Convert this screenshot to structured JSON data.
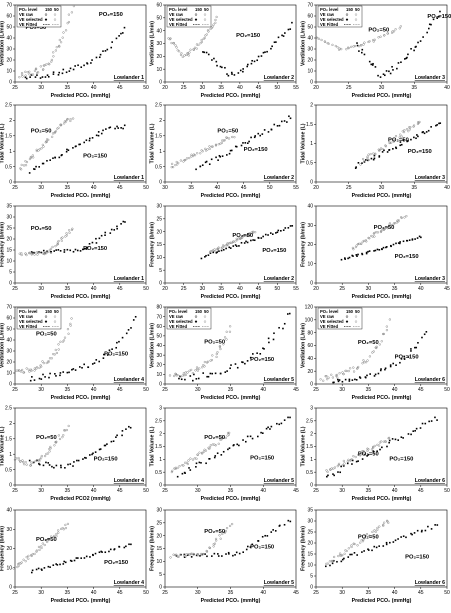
{
  "x_label": "Predicted PCO₂ (mmHg)",
  "x_label_alt": "Predicted PCO2 (mmHg)",
  "y_labels": {
    "ventilation": "Ventilation (L/min)",
    "tidal": "Tidal Volume (L)",
    "frequency": "Frequency (b/min)"
  },
  "annotations": {
    "po2_50": "PO₂=50",
    "po2_150": "PO₂=150"
  },
  "legend": {
    "header": [
      "PO₂ level",
      "150",
      "50"
    ],
    "rows": [
      "VE raw",
      "VE selected",
      "VE Fitted"
    ]
  },
  "colors": {
    "po2_50": "#8a8a8a",
    "po2_150": "#000000",
    "axis": "#000000"
  },
  "chart_data": [
    {
      "row": 0,
      "col": 0,
      "type": "scatter",
      "subject": "Lowlander 1",
      "xlim": [
        25,
        50
      ],
      "ylim": [
        0,
        70
      ],
      "xticks": [
        25,
        30,
        35,
        40,
        45,
        50
      ],
      "yticks": [
        0,
        10,
        20,
        30,
        40,
        50,
        60,
        70
      ],
      "ytype": "ventilation",
      "x50": [
        26,
        36
      ],
      "x150": [
        27,
        46
      ],
      "y50": [
        5,
        68
      ],
      "y150": [
        4,
        50
      ],
      "shape": "expo",
      "legend": true,
      "a50": [
        27,
        48
      ],
      "a150": [
        41,
        60
      ]
    },
    {
      "row": 0,
      "col": 1,
      "type": "scatter",
      "subject": "Lowlander 2",
      "xlim": [
        20,
        55
      ],
      "ylim": [
        0,
        60
      ],
      "xticks": [
        20,
        25,
        30,
        35,
        40,
        45,
        50,
        55
      ],
      "yticks": [
        0,
        10,
        20,
        30,
        40,
        50,
        60
      ],
      "ytype": "ventilation",
      "x50": [
        21,
        34
      ],
      "x150": [
        30,
        54
      ],
      "y50": [
        20,
        50
      ],
      "y150": [
        5,
        45
      ],
      "shape": "uturn",
      "legend": true,
      "a50": [
        23,
        46
      ],
      "a150": [
        39,
        35
      ]
    },
    {
      "row": 0,
      "col": 2,
      "type": "scatter",
      "subject": "Lowlander 3",
      "xlim": [
        20,
        40
      ],
      "ylim": [
        0,
        70
      ],
      "xticks": [
        20,
        25,
        30,
        35,
        40
      ],
      "yticks": [
        0,
        10,
        20,
        30,
        40,
        50,
        60,
        70
      ],
      "ytype": "ventilation",
      "x50": [
        20,
        33
      ],
      "x150": [
        26,
        39
      ],
      "y50": [
        30,
        50
      ],
      "y150": [
        5,
        65
      ],
      "shape": "uturn",
      "legend": true,
      "a50": [
        28,
        46
      ],
      "a150": [
        37,
        58
      ]
    },
    {
      "row": 1,
      "col": 0,
      "type": "scatter",
      "subject": "Lowlander 1",
      "xlim": [
        25,
        50
      ],
      "ylim": [
        0,
        2.5
      ],
      "xticks": [
        25,
        30,
        35,
        40,
        45,
        50
      ],
      "yticks": [
        0,
        0.5,
        1,
        1.5,
        2,
        2.5
      ],
      "ytype": "tidal",
      "x50": [
        26,
        36
      ],
      "x150": [
        28,
        46
      ],
      "y50": [
        0.4,
        2.0
      ],
      "y150": [
        0.35,
        1.8
      ],
      "shape": "sat",
      "legend": false,
      "a50": [
        28,
        1.6
      ],
      "a150": [
        38,
        0.8
      ]
    },
    {
      "row": 1,
      "col": 1,
      "type": "scatter",
      "subject": "Lowlander 2",
      "xlim": [
        30,
        55
      ],
      "ylim": [
        0,
        2.5
      ],
      "xticks": [
        30,
        35,
        40,
        45,
        50,
        55
      ],
      "yticks": [
        0,
        0.5,
        1,
        1.5,
        2,
        2.5
      ],
      "ytype": "tidal",
      "x50": [
        31,
        43
      ],
      "x150": [
        36,
        54
      ],
      "y50": [
        0.5,
        1.5
      ],
      "y150": [
        0.4,
        2.1
      ],
      "shape": "linear",
      "legend": false,
      "a50": [
        40,
        1.6
      ],
      "a150": [
        45,
        1.0
      ]
    },
    {
      "row": 1,
      "col": 2,
      "type": "scatter",
      "subject": "Lowlander 3",
      "xlim": [
        20,
        40
      ],
      "ylim": [
        0,
        2
      ],
      "xticks": [
        20,
        25,
        30,
        35,
        40
      ],
      "yticks": [
        0,
        0.5,
        1,
        1.5,
        2
      ],
      "ytype": "tidal",
      "x50": [
        27,
        36
      ],
      "x150": [
        26,
        39
      ],
      "y50": [
        0.5,
        1.6
      ],
      "y150": [
        0.4,
        1.5
      ],
      "shape": "linear",
      "legend": false,
      "a50": [
        31,
        1.05
      ],
      "a150": [
        34,
        0.75
      ]
    },
    {
      "row": 2,
      "col": 0,
      "type": "scatter",
      "subject": "Lowlander 1",
      "xlim": [
        25,
        50
      ],
      "ylim": [
        0,
        35
      ],
      "xticks": [
        25,
        30,
        35,
        40,
        45,
        50
      ],
      "yticks": [
        0,
        5,
        10,
        15,
        20,
        25,
        30,
        35
      ],
      "ytype": "frequency",
      "x50": [
        26,
        36
      ],
      "x150": [
        28,
        46
      ],
      "y50": [
        13,
        25
      ],
      "y150": [
        14,
        28
      ],
      "shape": "flatup",
      "legend": false,
      "a50": [
        28,
        24
      ],
      "a150": [
        38,
        15
      ]
    },
    {
      "row": 2,
      "col": 1,
      "type": "scatter",
      "subject": "Lowlander 2",
      "xlim": [
        20,
        55
      ],
      "ylim": [
        0,
        30
      ],
      "xticks": [
        20,
        25,
        30,
        35,
        40,
        45,
        50,
        55
      ],
      "yticks": [
        0,
        5,
        10,
        15,
        20,
        25,
        30
      ],
      "ytype": "frequency",
      "x50": [
        32,
        44
      ],
      "x150": [
        30,
        54
      ],
      "y50": [
        12,
        20
      ],
      "y150": [
        10,
        22
      ],
      "shape": "linear",
      "legend": false,
      "a50": [
        38,
        18
      ],
      "a150": [
        46,
        12
      ]
    },
    {
      "row": 2,
      "col": 2,
      "type": "scatter",
      "subject": "Lowlander 3",
      "xlim": [
        20,
        45
      ],
      "ylim": [
        0,
        40
      ],
      "xticks": [
        20,
        25,
        30,
        35,
        40,
        45
      ],
      "yticks": [
        0,
        10,
        20,
        30,
        40
      ],
      "ytype": "frequency",
      "x50": [
        27,
        37
      ],
      "x150": [
        25,
        40
      ],
      "y50": [
        18,
        35
      ],
      "y150": [
        12,
        24
      ],
      "shape": "linear",
      "legend": false,
      "a50": [
        31,
        28
      ],
      "a150": [
        35,
        13
      ]
    },
    {
      "row": 3,
      "col": 0,
      "type": "scatter",
      "subject": "Lowlander 4",
      "xlim": [
        25,
        50
      ],
      "ylim": [
        0,
        70
      ],
      "xticks": [
        25,
        30,
        35,
        40,
        45,
        50
      ],
      "yticks": [
        0,
        10,
        20,
        30,
        40,
        50,
        60,
        70
      ],
      "ytype": "ventilation",
      "x50": [
        25,
        36
      ],
      "x150": [
        28,
        48
      ],
      "y50": [
        10,
        60
      ],
      "y150": [
        5,
        60
      ],
      "shape": "expo",
      "legend": true,
      "a50": [
        29,
        44
      ],
      "a150": [
        42,
        26
      ]
    },
    {
      "row": 3,
      "col": 1,
      "type": "scatter",
      "subject": "Lowlander 5",
      "xlim": [
        25,
        45
      ],
      "ylim": [
        0,
        80
      ],
      "xticks": [
        25,
        30,
        35,
        40,
        45
      ],
      "yticks": [
        0,
        10,
        20,
        30,
        40,
        50,
        60,
        70,
        80
      ],
      "ytype": "ventilation",
      "x50": [
        26,
        35
      ],
      "x150": [
        27,
        44
      ],
      "y50": [
        8,
        60
      ],
      "y150": [
        5,
        75
      ],
      "shape": "expo",
      "legend": true,
      "a50": [
        31,
        42
      ],
      "a150": [
        38,
        24
      ]
    },
    {
      "row": 3,
      "col": 2,
      "type": "scatter",
      "subject": "Lowlander 6",
      "xlim": [
        25,
        50
      ],
      "ylim": [
        0,
        120
      ],
      "xticks": [
        25,
        30,
        35,
        40,
        45,
        50
      ],
      "yticks": [
        0,
        20,
        40,
        60,
        80,
        100,
        120
      ],
      "ytype": "ventilation",
      "x50": [
        26,
        39
      ],
      "x150": [
        28,
        46
      ],
      "y50": [
        8,
        100
      ],
      "y150": [
        5,
        80
      ],
      "shape": "expo",
      "legend": true,
      "a50": [
        33,
        62
      ],
      "a150": [
        40,
        40
      ]
    },
    {
      "row": 4,
      "col": 0,
      "type": "scatter",
      "subject": "Lowlander 4",
      "xlim": [
        25,
        50
      ],
      "ylim": [
        0,
        2.5
      ],
      "xticks": [
        25,
        30,
        35,
        40,
        45,
        50
      ],
      "yticks": [
        0,
        0.5,
        1,
        1.5,
        2,
        2.5
      ],
      "ytype": "tidal",
      "x50": [
        25,
        35
      ],
      "x150": [
        28,
        47
      ],
      "y50": [
        0.6,
        1.9
      ],
      "y150": [
        0.5,
        1.9
      ],
      "shape": "ushape",
      "legend": false,
      "a50": [
        29,
        1.5
      ],
      "a150": [
        40,
        0.8
      ],
      "xlabel_key": "x_label_alt"
    },
    {
      "row": 4,
      "col": 1,
      "type": "scatter",
      "subject": "Lowlander 5",
      "xlim": [
        25,
        45
      ],
      "ylim": [
        0,
        3
      ],
      "xticks": [
        25,
        30,
        35,
        40,
        45
      ],
      "yticks": [
        0,
        0.5,
        1,
        1.5,
        2,
        2.5,
        3
      ],
      "ytype": "tidal",
      "x50": [
        26,
        35
      ],
      "x150": [
        27,
        44
      ],
      "y50": [
        0.5,
        2.0
      ],
      "y150": [
        0.4,
        2.6
      ],
      "shape": "linear",
      "legend": false,
      "a50": [
        31,
        1.8
      ],
      "a150": [
        38,
        1.0
      ]
    },
    {
      "row": 4,
      "col": 2,
      "type": "scatter",
      "subject": "Lowlander 6",
      "xlim": [
        25,
        50
      ],
      "ylim": [
        0,
        3
      ],
      "xticks": [
        25,
        30,
        35,
        40,
        45,
        50
      ],
      "yticks": [
        0,
        0.5,
        1,
        1.5,
        2,
        2.5,
        3
      ],
      "ytype": "tidal",
      "x50": [
        27,
        39
      ],
      "x150": [
        27,
        48
      ],
      "y50": [
        0.5,
        1.8
      ],
      "y150": [
        0.3,
        2.6
      ],
      "shape": "linear",
      "legend": false,
      "a50": [
        33,
        1.15
      ],
      "a150": [
        39,
        0.95
      ]
    },
    {
      "row": 5,
      "col": 0,
      "type": "scatter",
      "subject": "Lowlander 4",
      "xlim": [
        25,
        50
      ],
      "ylim": [
        0,
        40
      ],
      "xticks": [
        25,
        30,
        35,
        40,
        45,
        50
      ],
      "yticks": [
        0,
        10,
        20,
        30,
        40
      ],
      "ytype": "frequency",
      "x50": [
        25,
        35
      ],
      "x150": [
        28,
        47
      ],
      "y50": [
        10,
        32
      ],
      "y150": [
        8,
        22
      ],
      "shape": "linear",
      "legend": false,
      "a50": [
        29,
        24
      ],
      "a150": [
        42,
        12
      ]
    },
    {
      "row": 5,
      "col": 1,
      "type": "scatter",
      "subject": "Lowlander 5",
      "xlim": [
        25,
        45
      ],
      "ylim": [
        0,
        30
      ],
      "xticks": [
        25,
        30,
        35,
        40,
        45
      ],
      "yticks": [
        0,
        5,
        10,
        15,
        20,
        25,
        30
      ],
      "ytype": "frequency",
      "x50": [
        26,
        35
      ],
      "x150": [
        27,
        44
      ],
      "y50": [
        12,
        24
      ],
      "y150": [
        12,
        26
      ],
      "shape": "flatup",
      "legend": false,
      "a50": [
        31,
        21
      ],
      "a150": [
        38,
        15
      ]
    },
    {
      "row": 5,
      "col": 2,
      "type": "scatter",
      "subject": "Lowlander 6",
      "xlim": [
        25,
        50
      ],
      "ylim": [
        0,
        35
      ],
      "xticks": [
        25,
        30,
        35,
        40,
        45,
        50
      ],
      "yticks": [
        0,
        5,
        10,
        15,
        20,
        25,
        30,
        35
      ],
      "ytype": "frequency",
      "x50": [
        27,
        39
      ],
      "x150": [
        27,
        48
      ],
      "y50": [
        10,
        30
      ],
      "y150": [
        10,
        28
      ],
      "shape": "linear",
      "legend": false,
      "a50": [
        33,
        22
      ],
      "a150": [
        42,
        13
      ]
    }
  ]
}
